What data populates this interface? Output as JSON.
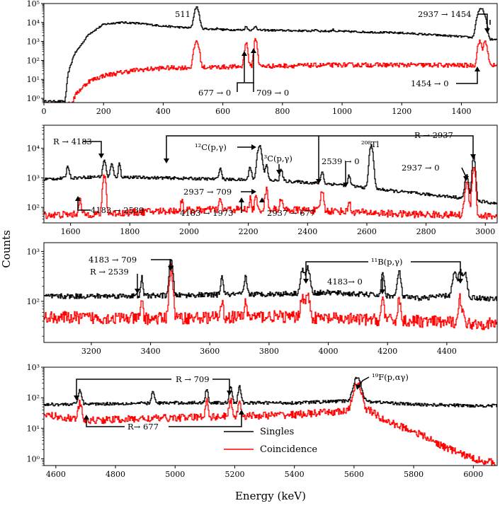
{
  "figure": {
    "xlabel": "Energy (keV)",
    "ylabel": "Counts",
    "legend": {
      "placement": "lower-center of bottom panel",
      "entries": [
        {
          "name": "Singles",
          "color": "#000000"
        },
        {
          "name": "Coincidence",
          "color": "#ff0000"
        }
      ]
    }
  },
  "chart_data": [
    {
      "type": "line",
      "panel": 1,
      "xlim": [
        0,
        1520
      ],
      "ylim": [
        0.6,
        100000
      ],
      "yscale": "log",
      "xticks": [
        0,
        200,
        400,
        600,
        800,
        1000,
        1200,
        1400
      ],
      "yticks": [
        1,
        10,
        100,
        1000,
        10000,
        100000
      ],
      "series": [
        {
          "name": "Singles",
          "color": "#000000",
          "base": [
            [
              70,
              0.7
            ],
            [
              80,
              20
            ],
            [
              100,
              200
            ],
            [
              150,
              2500
            ],
            [
              200,
              8000
            ],
            [
              250,
              10000
            ],
            [
              300,
              9500
            ],
            [
              400,
              6500
            ],
            [
              500,
              5000
            ],
            [
              600,
              4200
            ],
            [
              800,
              3800
            ],
            [
              1000,
              3400
            ],
            [
              1200,
              2800
            ],
            [
              1400,
              1800
            ],
            [
              1520,
              1200
            ]
          ],
          "peaks": [
            [
              511,
              60000,
              6
            ],
            [
              583,
              800,
              4
            ],
            [
              677,
              2000,
              4
            ],
            [
              709,
              2500,
              4
            ],
            [
              911,
              800,
              4
            ],
            [
              969,
              700,
              4
            ],
            [
              1460,
              40000,
              7
            ],
            [
              1470,
              30000,
              5
            ],
            [
              1479,
              12000,
              5
            ]
          ]
        },
        {
          "name": "Coincidence",
          "color": "#ff0000",
          "base": [
            [
              90,
              0.5
            ],
            [
              110,
              2
            ],
            [
              150,
              8
            ],
            [
              200,
              16
            ],
            [
              300,
              30
            ],
            [
              400,
              40
            ],
            [
              600,
              45
            ],
            [
              800,
              52
            ],
            [
              1000,
              58
            ],
            [
              1200,
              58
            ],
            [
              1400,
              55
            ],
            [
              1520,
              55
            ]
          ],
          "peaks": [
            [
              511,
              1000,
              6
            ],
            [
              677,
              800,
              4
            ],
            [
              709,
              1300,
              4
            ],
            [
              1460,
              1000,
              5
            ],
            [
              1479,
              1000,
              5
            ]
          ]
        }
      ]
    },
    {
      "type": "line",
      "panel": 2,
      "xlim": [
        1510,
        3040
      ],
      "ylim": [
        30,
        60000
      ],
      "yscale": "log",
      "xticks": [
        1600,
        1800,
        2000,
        2200,
        2400,
        2600,
        2800,
        3000
      ],
      "yticks": [
        100,
        1000,
        10000
      ],
      "series": [
        {
          "name": "Singles",
          "color": "#000000",
          "base": [
            [
              1510,
              900
            ],
            [
              1700,
              1100
            ],
            [
              1900,
              1000
            ],
            [
              2100,
              900
            ],
            [
              2300,
              800
            ],
            [
              2500,
              600
            ],
            [
              2700,
              350
            ],
            [
              2900,
              220
            ],
            [
              3040,
              130
            ]
          ],
          "peaks": [
            [
              1590,
              1500,
              4
            ],
            [
              1713,
              3000,
              4
            ],
            [
              1738,
              1800,
              4
            ],
            [
              1764,
              2000,
              3
            ],
            [
              2104,
              1200,
              4
            ],
            [
              2205,
              1500,
              4
            ],
            [
              2237,
              12000,
              6
            ],
            [
              2260,
              1800,
              4
            ],
            [
              2310,
              1100,
              4
            ],
            [
              2448,
              1000,
              4
            ],
            [
              2539,
              600,
              4
            ],
            [
              2614,
              12000,
              5
            ],
            [
              2936,
              1000,
              5
            ],
            [
              2960,
              5000,
              4
            ]
          ]
        },
        {
          "name": "Coincidence",
          "color": "#ff0000",
          "base": [
            [
              1510,
              55
            ],
            [
              1700,
              60
            ],
            [
              1900,
              75
            ],
            [
              2100,
              85
            ],
            [
              2300,
              85
            ],
            [
              2500,
              75
            ],
            [
              2700,
              60
            ],
            [
              2900,
              55
            ],
            [
              3040,
              50
            ]
          ],
          "peaks": [
            [
              1630,
              120,
              4
            ],
            [
              1713,
              1200,
              4
            ],
            [
              1975,
              110,
              3
            ],
            [
              2104,
              110,
              3
            ],
            [
              2205,
              110,
              3
            ],
            [
              2224,
              150,
              3
            ],
            [
              2260,
              300,
              4
            ],
            [
              2310,
              150,
              3
            ],
            [
              2448,
              300,
              4
            ],
            [
              2539,
              100,
              3
            ],
            [
              2936,
              600,
              5
            ],
            [
              2960,
              2500,
              4
            ]
          ]
        }
      ]
    },
    {
      "type": "line",
      "panel": 3,
      "xlim": [
        3040,
        4570
      ],
      "ylim": [
        15,
        1500
      ],
      "yscale": "log",
      "xticks": [
        3200,
        3400,
        3600,
        3800,
        4000,
        4200,
        4400
      ],
      "yticks": [
        100,
        1000
      ],
      "series": [
        {
          "name": "Singles",
          "color": "#000000",
          "base": [
            [
              3040,
              125
            ],
            [
              3400,
              130
            ],
            [
              3800,
              140
            ],
            [
              4000,
              150
            ],
            [
              4200,
              130
            ],
            [
              4300,
              115
            ],
            [
              4400,
              130
            ],
            [
              4570,
              110
            ]
          ],
          "peaks": [
            [
              3370,
              170,
              3
            ],
            [
              3468,
              560,
              5
            ],
            [
              3640,
              170,
              4
            ],
            [
              3720,
              170,
              4
            ],
            [
              3912,
              280,
              6
            ],
            [
              3930,
              320,
              6
            ],
            [
              4183,
              240,
              4
            ],
            [
              4238,
              270,
              5
            ],
            [
              4425,
              240,
              6
            ],
            [
              4444,
              270,
              6
            ],
            [
              4460,
              250,
              6
            ]
          ]
        },
        {
          "name": "Coincidence",
          "color": "#ff0000",
          "base": [
            [
              3040,
              48
            ],
            [
              3400,
              45
            ],
            [
              3800,
              50
            ],
            [
              4000,
              45
            ],
            [
              4200,
              42
            ],
            [
              4400,
              38
            ],
            [
              4570,
              35
            ]
          ],
          "peaks": [
            [
              3370,
              70,
              3
            ],
            [
              3468,
              400,
              5
            ],
            [
              3640,
              65,
              3
            ],
            [
              3720,
              60,
              3
            ],
            [
              3912,
              80,
              6
            ],
            [
              3930,
              80,
              6
            ],
            [
              4183,
              75,
              4
            ],
            [
              4238,
              70,
              4
            ],
            [
              4444,
              75,
              6
            ]
          ]
        }
      ]
    },
    {
      "type": "line",
      "panel": 4,
      "xlim": [
        4560,
        6080
      ],
      "ylim": [
        0.6,
        1000
      ],
      "yscale": "log",
      "xticks": [
        4600,
        4800,
        5000,
        5200,
        5400,
        5600,
        5800,
        6000
      ],
      "yticks": [
        1,
        10,
        100,
        1000
      ],
      "series": [
        {
          "name": "Singles",
          "color": "#000000",
          "base": [
            [
              4560,
              60
            ],
            [
              5000,
              68
            ],
            [
              5400,
              68
            ],
            [
              5600,
              80
            ],
            [
              5700,
              70
            ],
            [
              5800,
              60
            ],
            [
              6000,
              55
            ],
            [
              6080,
              55
            ]
          ],
          "peaks": [
            [
              4680,
              110,
              5
            ],
            [
              4925,
              95,
              4
            ],
            [
              5105,
              120,
              4
            ],
            [
              5185,
              180,
              4
            ],
            [
              5215,
              160,
              4
            ],
            [
              5610,
              400,
              10
            ]
          ]
        },
        {
          "name": "Coincidence",
          "color": "#ff0000",
          "base": [
            [
              4560,
              28
            ],
            [
              4700,
              18
            ],
            [
              5000,
              22
            ],
            [
              5400,
              28
            ],
            [
              5550,
              35
            ],
            [
              5650,
              40
            ],
            [
              5700,
              18
            ],
            [
              5800,
              8
            ],
            [
              5900,
              2.5
            ],
            [
              6000,
              1
            ],
            [
              6080,
              0.7
            ]
          ],
          "peaks": [
            [
              4680,
              45,
              5
            ],
            [
              5105,
              60,
              4
            ],
            [
              5185,
              60,
              4
            ],
            [
              5215,
              55,
              4
            ],
            [
              5610,
              270,
              10
            ]
          ]
        }
      ]
    }
  ],
  "annotations": {
    "p1": {
      "a511": "511",
      "a2937_1454": "2937 → 1454",
      "a677_0": "677 → 0",
      "a709_0": "709 → 0",
      "a1454_0": "1454 → 0"
    },
    "p2": {
      "aR_4183": "R → 4183",
      "aC12": "¹²C(p,γ)",
      "aC13": "¹³C(p,γ)",
      "aTl": "²⁰⁸Tl",
      "a2539_0": "2539 → 0",
      "aR_2937": "R → 2937",
      "a2937_0": "2937 → 0",
      "a2937_709": "2937 → 709",
      "a4183_2539": "4183 → 2539",
      "a4183_1973": "4183 → 1973",
      "a2937_677": "2937 → 677"
    },
    "p3": {
      "a4183_709": "4183 → 709",
      "aR_2539": "R → 2539",
      "aB11": "¹¹B(p,γ)",
      "a4183_0": "4183→ 0"
    },
    "p4": {
      "aR_709": "R → 709",
      "aF19": "¹⁹F(p,αγ)",
      "aR_677": "R→ 677"
    }
  }
}
